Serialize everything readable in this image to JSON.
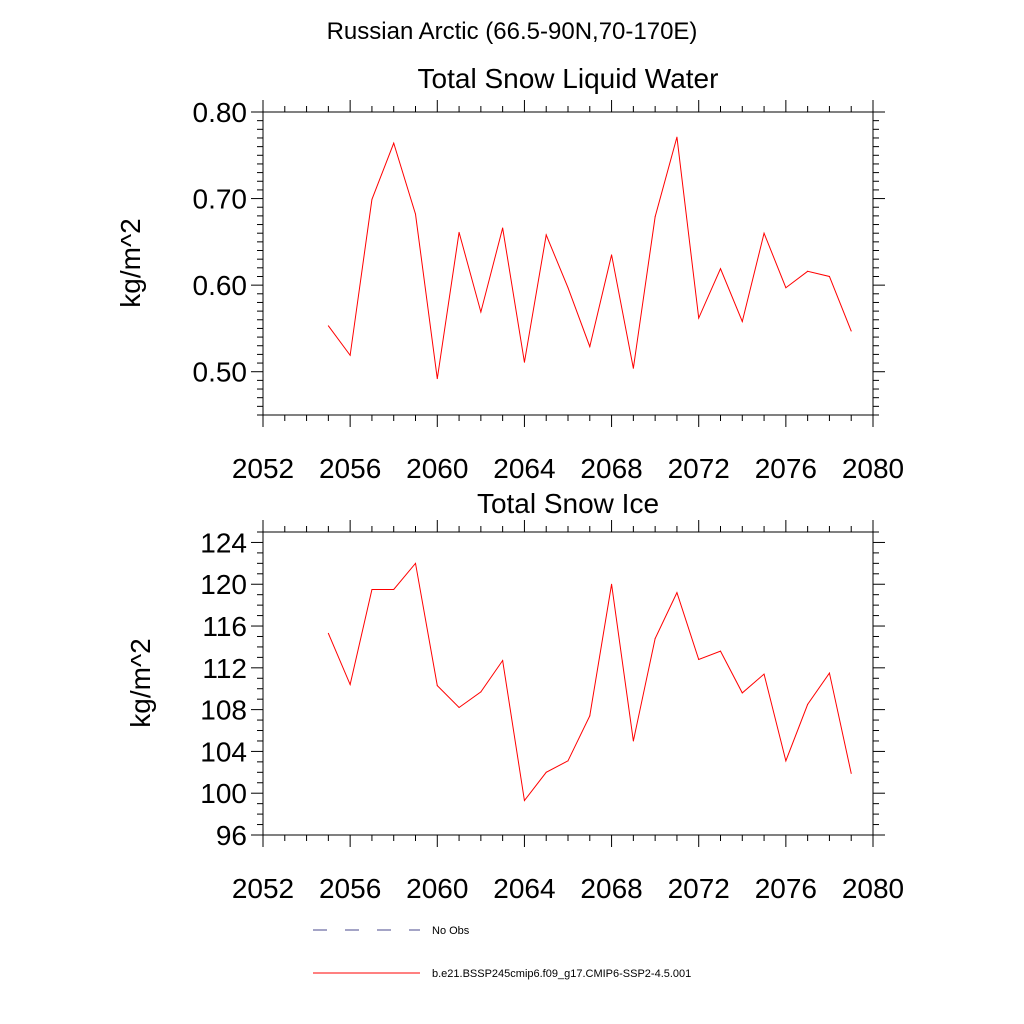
{
  "suptitle": "Russian Arctic (66.5-90N,70-170E)",
  "chart_data": [
    {
      "type": "line",
      "title": "Total Snow Liquid Water",
      "xlabel": "",
      "ylabel": "kg/m^2",
      "xlim": [
        2052,
        2080
      ],
      "ylim": [
        0.45,
        0.8
      ],
      "xticks": [
        "2052",
        "2056",
        "2060",
        "2064",
        "2068",
        "2072",
        "2076",
        "2080"
      ],
      "yticks": [
        "0.50",
        "0.60",
        "0.70",
        "0.80"
      ],
      "series": [
        {
          "name": "b.e21.BSSP245cmip6.f09_g17.CMIP6-SSP2-4.5.001",
          "color": "#ff0000",
          "x": [
            2055,
            2056,
            2057,
            2058,
            2059,
            2060,
            2061,
            2062,
            2063,
            2064,
            2065,
            2066,
            2067,
            2068,
            2069,
            2070,
            2071,
            2072,
            2073,
            2074,
            2075,
            2076,
            2077,
            2078,
            2079
          ],
          "y": [
            0.553,
            0.519,
            0.699,
            0.764,
            0.682,
            0.492,
            0.661,
            0.569,
            0.666,
            0.511,
            0.658,
            0.597,
            0.529,
            0.635,
            0.504,
            0.679,
            0.771,
            0.562,
            0.619,
            0.558,
            0.66,
            0.597,
            0.616,
            0.61,
            0.547
          ]
        }
      ]
    },
    {
      "type": "line",
      "title": "Total Snow Ice",
      "xlabel": "",
      "ylabel": "kg/m^2",
      "xlim": [
        2052,
        2080
      ],
      "ylim": [
        96,
        125
      ],
      "xticks": [
        "2052",
        "2056",
        "2060",
        "2064",
        "2068",
        "2072",
        "2076",
        "2080"
      ],
      "yticks": [
        "96",
        "100",
        "104",
        "108",
        "112",
        "116",
        "120",
        "124"
      ],
      "series": [
        {
          "name": "b.e21.BSSP245cmip6.f09_g17.CMIP6-SSP2-4.5.001",
          "color": "#ff0000",
          "x": [
            2055,
            2056,
            2057,
            2058,
            2059,
            2060,
            2061,
            2062,
            2063,
            2064,
            2065,
            2066,
            2067,
            2068,
            2069,
            2070,
            2071,
            2072,
            2073,
            2074,
            2075,
            2076,
            2077,
            2078,
            2079
          ],
          "y": [
            115.3,
            110.4,
            119.5,
            119.5,
            122.0,
            110.3,
            108.2,
            109.7,
            112.7,
            99.3,
            102.0,
            103.1,
            107.4,
            120.0,
            105.0,
            114.8,
            119.2,
            112.8,
            113.6,
            109.6,
            111.4,
            103.1,
            108.5,
            111.5,
            101.9
          ]
        }
      ]
    }
  ],
  "legend": {
    "entries": [
      {
        "label": "No Obs",
        "style": "dashed",
        "color": "#4a4a8c"
      },
      {
        "label": "b.e21.BSSP245cmip6.f09_g17.CMIP6-SSP2-4.5.001",
        "style": "solid",
        "color": "#ff0000"
      }
    ]
  }
}
